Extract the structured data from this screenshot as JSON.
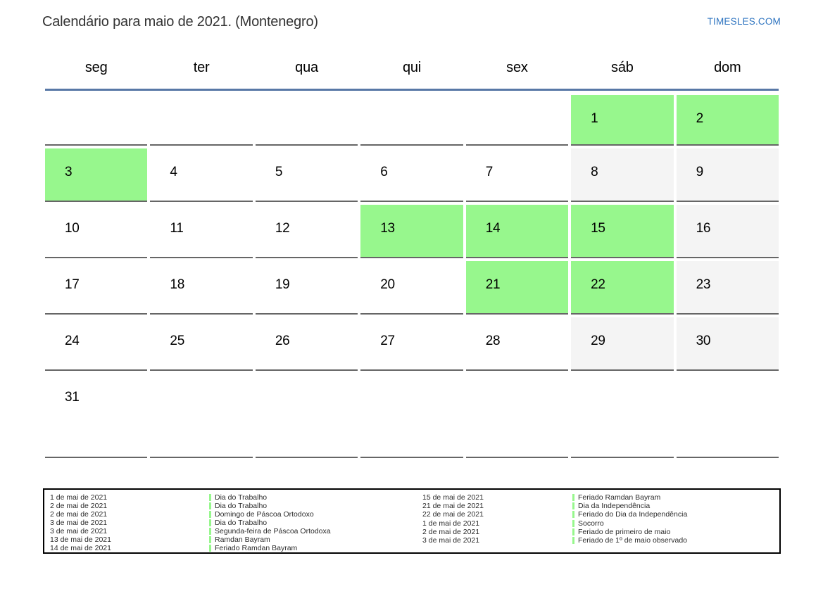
{
  "title": "Calendário para maio de 2021. (Montenegro)",
  "brand": "TIMESLES.COM",
  "weekdays": [
    "seg",
    "ter",
    "qua",
    "qui",
    "sex",
    "sáb",
    "dom"
  ],
  "weeks": [
    [
      {
        "day": "",
        "type": "empty"
      },
      {
        "day": "",
        "type": "empty"
      },
      {
        "day": "",
        "type": "empty"
      },
      {
        "day": "",
        "type": "empty"
      },
      {
        "day": "",
        "type": "empty"
      },
      {
        "day": "1",
        "type": "holiday"
      },
      {
        "day": "2",
        "type": "holiday"
      }
    ],
    [
      {
        "day": "3",
        "type": "holiday"
      },
      {
        "day": "4",
        "type": "normal"
      },
      {
        "day": "5",
        "type": "normal"
      },
      {
        "day": "6",
        "type": "normal"
      },
      {
        "day": "7",
        "type": "normal"
      },
      {
        "day": "8",
        "type": "weekend"
      },
      {
        "day": "9",
        "type": "weekend"
      }
    ],
    [
      {
        "day": "10",
        "type": "normal"
      },
      {
        "day": "11",
        "type": "normal"
      },
      {
        "day": "12",
        "type": "normal"
      },
      {
        "day": "13",
        "type": "holiday"
      },
      {
        "day": "14",
        "type": "holiday"
      },
      {
        "day": "15",
        "type": "holiday"
      },
      {
        "day": "16",
        "type": "weekend"
      }
    ],
    [
      {
        "day": "17",
        "type": "normal"
      },
      {
        "day": "18",
        "type": "normal"
      },
      {
        "day": "19",
        "type": "normal"
      },
      {
        "day": "20",
        "type": "normal"
      },
      {
        "day": "21",
        "type": "holiday"
      },
      {
        "day": "22",
        "type": "holiday"
      },
      {
        "day": "23",
        "type": "weekend"
      }
    ],
    [
      {
        "day": "24",
        "type": "normal"
      },
      {
        "day": "25",
        "type": "normal"
      },
      {
        "day": "26",
        "type": "normal"
      },
      {
        "day": "27",
        "type": "normal"
      },
      {
        "day": "28",
        "type": "normal"
      },
      {
        "day": "29",
        "type": "weekend"
      },
      {
        "day": "30",
        "type": "weekend"
      }
    ],
    [
      {
        "day": "31",
        "type": "normal"
      },
      {
        "day": "",
        "type": "empty"
      },
      {
        "day": "",
        "type": "empty"
      },
      {
        "day": "",
        "type": "empty"
      },
      {
        "day": "",
        "type": "empty"
      },
      {
        "day": "",
        "type": "empty"
      },
      {
        "day": "",
        "type": "empty"
      }
    ]
  ],
  "legend": {
    "left": [
      {
        "date": "1 de mai de 2021",
        "name": "Dia do Trabalho"
      },
      {
        "date": "2 de mai de 2021",
        "name": "Dia do Trabalho"
      },
      {
        "date": "2 de mai de 2021",
        "name": "Domingo de Páscoa Ortodoxo"
      },
      {
        "date": "3 de mai de 2021",
        "name": "Dia do Trabalho"
      },
      {
        "date": "3 de mai de 2021",
        "name": "Segunda-feira de Páscoa Ortodoxa"
      },
      {
        "date": "13 de mai de 2021",
        "name": "Ramdan Bayram"
      },
      {
        "date": "14 de mai de 2021",
        "name": "Feriado Ramdan Bayram"
      }
    ],
    "right": [
      {
        "date": "15 de mai de 2021",
        "name": "Feriado Ramdan Bayram"
      },
      {
        "date": "21 de mai de 2021",
        "name": "Dia da Independência"
      },
      {
        "date": "22 de mai de 2021",
        "name": "Feriado do Dia da Independência"
      },
      {
        "date": "1 de mai de 2021",
        "name": "Socorro"
      },
      {
        "date": "2 de mai de 2021",
        "name": "Feriado de primeiro de maio"
      },
      {
        "date": "3 de mai de 2021",
        "name": "Feriado de 1º de maio observado"
      }
    ]
  },
  "colors": {
    "holiday_green": "#97f78d",
    "weekend_gray": "#f4f4f4",
    "cell_border": "#666666",
    "divider_blue": "#5878a6",
    "brand_blue": "#2e74c0"
  }
}
